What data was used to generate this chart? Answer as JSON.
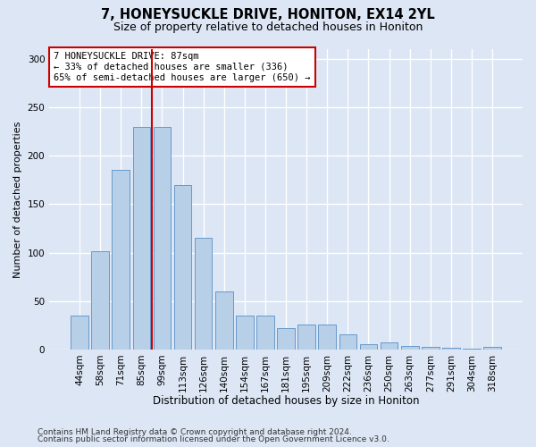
{
  "title1": "7, HONEYSUCKLE DRIVE, HONITON, EX14 2YL",
  "title2": "Size of property relative to detached houses in Honiton",
  "xlabel": "Distribution of detached houses by size in Honiton",
  "ylabel": "Number of detached properties",
  "footnote1": "Contains HM Land Registry data © Crown copyright and database right 2024.",
  "footnote2": "Contains public sector information licensed under the Open Government Licence v3.0.",
  "categories": [
    "44sqm",
    "58sqm",
    "71sqm",
    "85sqm",
    "99sqm",
    "113sqm",
    "126sqm",
    "140sqm",
    "154sqm",
    "167sqm",
    "181sqm",
    "195sqm",
    "209sqm",
    "222sqm",
    "236sqm",
    "250sqm",
    "263sqm",
    "277sqm",
    "291sqm",
    "304sqm",
    "318sqm"
  ],
  "values": [
    35,
    101,
    185,
    230,
    230,
    170,
    115,
    60,
    35,
    35,
    22,
    26,
    26,
    16,
    5,
    7,
    4,
    3,
    2,
    1,
    3
  ],
  "bar_color": "#b8cfe8",
  "bar_edgecolor": "#6699cc",
  "vline_x": 3.5,
  "vline_color": "#cc0000",
  "annotation_line1": "7 HONEYSUCKLE DRIVE: 87sqm",
  "annotation_line2": "← 33% of detached houses are smaller (336)",
  "annotation_line3": "65% of semi-detached houses are larger (650) →",
  "annotation_box_facecolor": "white",
  "annotation_box_edgecolor": "#cc0000",
  "ylim_max": 310,
  "yticks": [
    0,
    50,
    100,
    150,
    200,
    250,
    300
  ],
  "background_color": "#dce6f5",
  "grid_color": "white",
  "title1_fontsize": 10.5,
  "title2_fontsize": 9,
  "tick_fontsize": 7.5,
  "ylabel_fontsize": 8,
  "xlabel_fontsize": 8.5,
  "annotation_fontsize": 7.5,
  "footnote_fontsize": 6.5
}
